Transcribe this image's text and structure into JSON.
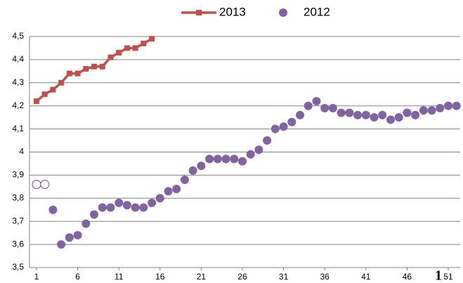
{
  "chart_data": {
    "type": "line",
    "x": [
      1,
      2,
      3,
      4,
      5,
      6,
      7,
      8,
      9,
      10,
      11,
      12,
      13,
      14,
      15,
      16,
      17,
      18,
      19,
      20,
      21,
      22,
      23,
      24,
      25,
      26,
      27,
      28,
      29,
      30,
      31,
      32,
      33,
      34,
      35,
      36,
      37,
      38,
      39,
      40,
      41,
      42,
      43,
      44,
      45,
      46,
      47,
      48,
      49,
      50,
      51,
      52
    ],
    "xlim": [
      0.15,
      52.45
    ],
    "xticks": [
      1,
      6,
      11,
      16,
      21,
      26,
      31,
      36,
      41,
      46,
      51
    ],
    "ylim": [
      3.5,
      4.5
    ],
    "yticks": [
      {
        "value": 3.5,
        "label": "3,5"
      },
      {
        "value": 3.6,
        "label": "3,6"
      },
      {
        "value": 3.7,
        "label": "3,7"
      },
      {
        "value": 3.8,
        "label": "3,8"
      },
      {
        "value": 3.9,
        "label": "3,9"
      },
      4,
      {
        "value": 4.1,
        "label": "4,1"
      },
      {
        "value": 4.2,
        "label": "4,2"
      },
      {
        "value": 4.3,
        "label": "4,3"
      },
      {
        "value": 4.4,
        "label": "4,4"
      },
      {
        "value": 4.5,
        "label": "4,5"
      }
    ],
    "grid": true,
    "legend": "top",
    "annotation": "1",
    "series": [
      {
        "name": "2013",
        "color": "#c0504d",
        "style": "line",
        "values": [
          4.22,
          4.25,
          4.27,
          4.3,
          4.34,
          4.34,
          4.36,
          4.37,
          4.37,
          4.41,
          4.43,
          4.45,
          4.45,
          4.47,
          4.49,
          null,
          null,
          null,
          null,
          null,
          null,
          null,
          null,
          null,
          null,
          null,
          null,
          null,
          null,
          null,
          null,
          null,
          null,
          null,
          null,
          null,
          null,
          null,
          null,
          null,
          null,
          null,
          null,
          null,
          null,
          null,
          null,
          null,
          null,
          null,
          null,
          null
        ]
      },
      {
        "name": "2012",
        "color": "#8064a2",
        "style": "scatter",
        "open_markers": [
          1,
          2
        ],
        "values": [
          3.86,
          3.86,
          3.75,
          3.6,
          3.63,
          3.64,
          3.69,
          3.73,
          3.76,
          3.76,
          3.78,
          3.77,
          3.76,
          3.76,
          3.78,
          3.8,
          3.83,
          3.84,
          3.88,
          3.92,
          3.94,
          3.97,
          3.97,
          3.97,
          3.97,
          3.96,
          3.99,
          4.01,
          4.05,
          4.1,
          4.11,
          4.13,
          4.16,
          4.2,
          4.22,
          4.19,
          4.19,
          4.17,
          4.17,
          4.16,
          4.16,
          4.15,
          4.16,
          4.14,
          4.15,
          4.17,
          4.16,
          4.18,
          4.18,
          4.19,
          4.2,
          4.2
        ]
      }
    ]
  }
}
